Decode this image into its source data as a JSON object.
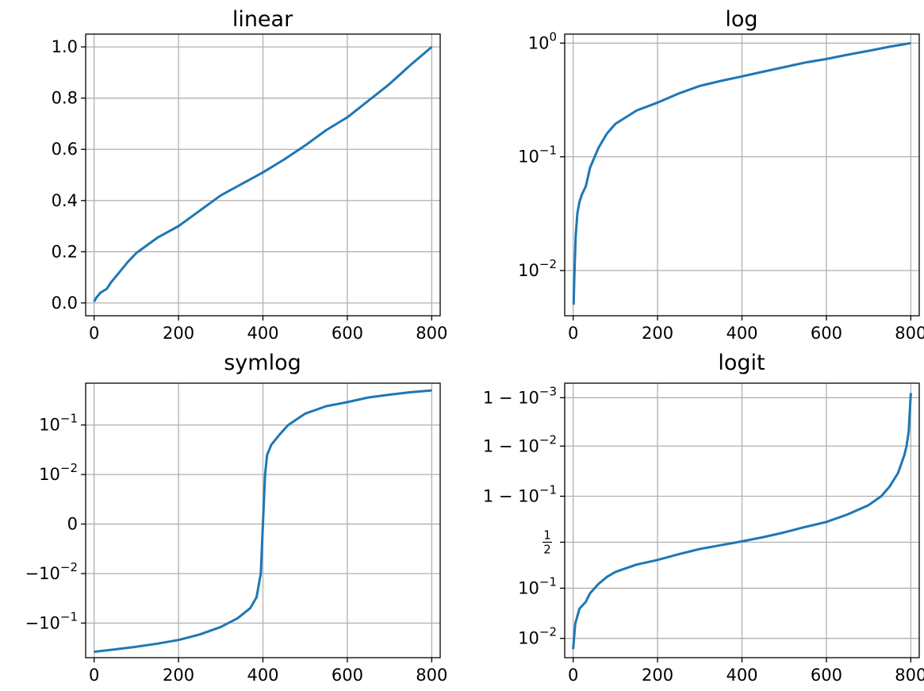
{
  "style": {
    "line_color": "#1f77b4",
    "grid_color": "#b0b0b0",
    "axes_color": "#000000",
    "background": "#ffffff"
  },
  "chart_data": [
    {
      "type": "line",
      "title": "linear",
      "xlabel": "",
      "ylabel": "",
      "yscale": "linear",
      "grid": true,
      "xlim": [
        -20,
        820
      ],
      "ylim": [
        -0.05,
        1.05
      ],
      "xticks": [
        0,
        200,
        400,
        600,
        800
      ],
      "xtick_labels": [
        "0",
        "200",
        "400",
        "600",
        "800"
      ],
      "yticks": [
        0.0,
        0.2,
        0.4,
        0.6,
        0.8,
        1.0
      ],
      "ytick_labels": [
        "0.0",
        "0.2",
        "0.4",
        "0.6",
        "0.8",
        "1.0"
      ],
      "series": [
        {
          "x": [
            0,
            5,
            15,
            30,
            40,
            60,
            80,
            100,
            150,
            200,
            250,
            300,
            350,
            400,
            450,
            500,
            550,
            600,
            650,
            700,
            750,
            800
          ],
          "values": [
            0.005,
            0.02,
            0.04,
            0.055,
            0.08,
            0.12,
            0.16,
            0.195,
            0.255,
            0.3,
            0.36,
            0.42,
            0.465,
            0.51,
            0.56,
            0.615,
            0.675,
            0.725,
            0.79,
            0.855,
            0.93,
            1.0
          ]
        }
      ]
    },
    {
      "type": "line",
      "title": "log",
      "xlabel": "",
      "ylabel": "",
      "yscale": "log",
      "grid": true,
      "xlim": [
        -20,
        820
      ],
      "ylim": [
        0.004,
        1.2
      ],
      "xticks": [
        0,
        200,
        400,
        600,
        800
      ],
      "xtick_labels": [
        "0",
        "200",
        "400",
        "600",
        "800"
      ],
      "yticks": [
        0.01,
        0.1,
        1
      ],
      "ytick_labels": [
        {
          "base": "10",
          "exp": "−2"
        },
        {
          "base": "10",
          "exp": "−1"
        },
        {
          "base": "10",
          "exp": "0"
        }
      ],
      "series": [
        {
          "x": [
            1,
            3,
            6,
            10,
            15,
            20,
            30,
            40,
            60,
            80,
            100,
            150,
            200,
            250,
            300,
            350,
            400,
            450,
            500,
            550,
            600,
            650,
            700,
            750,
            800
          ],
          "values": [
            0.005,
            0.009,
            0.02,
            0.032,
            0.04,
            0.046,
            0.055,
            0.08,
            0.12,
            0.16,
            0.195,
            0.255,
            0.3,
            0.36,
            0.42,
            0.465,
            0.51,
            0.56,
            0.615,
            0.675,
            0.725,
            0.79,
            0.855,
            0.93,
            1.0
          ]
        }
      ]
    },
    {
      "type": "line",
      "title": "symlog",
      "xlabel": "",
      "ylabel": "",
      "yscale": "symlog",
      "linthresh": 0.01,
      "grid": true,
      "xlim": [
        -20,
        820
      ],
      "ylim": [
        -0.5,
        0.7
      ],
      "xticks": [
        0,
        200,
        400,
        600,
        800
      ],
      "xtick_labels": [
        "0",
        "200",
        "400",
        "600",
        "800"
      ],
      "yticks": [
        -0.1,
        -0.01,
        0,
        0.01,
        0.1
      ],
      "ytick_labels": [
        {
          "base": "−10",
          "exp": "−1"
        },
        {
          "base": "−10",
          "exp": "−2"
        },
        {
          "base": "0",
          "exp": ""
        },
        {
          "base": "10",
          "exp": "−2"
        },
        {
          "base": "10",
          "exp": "−1"
        }
      ],
      "series": [
        {
          "x": [
            0,
            50,
            100,
            150,
            200,
            250,
            300,
            340,
            370,
            385,
            395,
            400,
            405,
            410,
            420,
            440,
            460,
            500,
            550,
            600,
            650,
            700,
            750,
            800
          ],
          "values": [
            -0.38,
            -0.34,
            -0.3,
            -0.26,
            -0.22,
            -0.17,
            -0.12,
            -0.08,
            -0.05,
            -0.03,
            -0.01,
            0.0,
            0.01,
            0.025,
            0.04,
            0.065,
            0.1,
            0.17,
            0.24,
            0.29,
            0.36,
            0.41,
            0.46,
            0.5
          ]
        }
      ]
    },
    {
      "type": "line",
      "title": "logit",
      "xlabel": "",
      "ylabel": "",
      "yscale": "logit",
      "grid": true,
      "xlim": [
        -20,
        820
      ],
      "ylim": [
        0.004,
        0.9995
      ],
      "xticks": [
        0,
        200,
        400,
        600,
        800
      ],
      "xtick_labels": [
        "0",
        "200",
        "400",
        "600",
        "800"
      ],
      "yticks": [
        0.01,
        0.1,
        0.5,
        0.9,
        0.99,
        0.999
      ],
      "ytick_labels": [
        {
          "base": "10",
          "exp": "−2"
        },
        {
          "base": "10",
          "exp": "−1"
        },
        {
          "base": "1/2",
          "exp": ""
        },
        {
          "base": "1 − 10",
          "exp": "−1"
        },
        {
          "base": "1 − 10",
          "exp": "−2"
        },
        {
          "base": "1 − 10",
          "exp": "−3"
        }
      ],
      "series": [
        {
          "x": [
            0,
            5,
            15,
            30,
            40,
            60,
            80,
            100,
            150,
            200,
            250,
            300,
            350,
            400,
            450,
            500,
            550,
            600,
            650,
            700,
            730,
            750,
            770,
            785,
            790,
            795,
            800
          ],
          "values": [
            0.006,
            0.02,
            0.04,
            0.055,
            0.08,
            0.12,
            0.16,
            0.195,
            0.255,
            0.3,
            0.36,
            0.42,
            0.465,
            0.51,
            0.56,
            0.615,
            0.675,
            0.725,
            0.79,
            0.855,
            0.9,
            0.935,
            0.965,
            0.985,
            0.99,
            0.995,
            0.9992
          ]
        }
      ]
    }
  ]
}
